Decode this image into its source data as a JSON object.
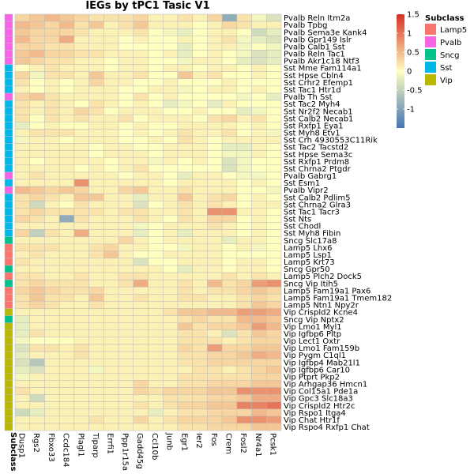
{
  "chart_data": {
    "type": "heatmap",
    "title": "IEGs by tPC1 Tasic V1",
    "annotation_label": "Subclass",
    "columns": [
      "Dusp1",
      "Rgs2",
      "Fbxo33",
      "Ccdc184",
      "Plagl1",
      "Tiparp",
      "Errfi1",
      "Ppp1r15a",
      "Gadd45g",
      "Ccl10b",
      "Junb",
      "Egr1",
      "Ier2",
      "Fos",
      "Crem",
      "Fosl2",
      "Nr4a1",
      "Pcsk1"
    ],
    "rows": [
      "Pvalb Reln Itm2a",
      "Pvalb Tpbg",
      "Pvalb Sema3e Kank4",
      "Pvalb Gpr149 Islr",
      "Pvalb Calb1 Sst",
      "Pvalb Reln Tac1",
      "Pvalb Akr1c18 Ntf3",
      "Sst Mme Fam114a1",
      "Sst Hpse Cbln4",
      "Sst Crhr2 Efemp1",
      "Sst Tac1 Htr1d",
      "Pvalb Th Sst",
      "Sst Tac2 Myh4",
      "Sst Nr2f2 Necab1",
      "Sst Calb2 Necab1",
      "Sst Rxfp1 Eya1",
      "Sst Myh8 Etv1",
      "Sst Crh 4930553C11Rik",
      "Sst Tac2 Tacstd2",
      "Sst Hpse Sema3c",
      "Sst Rxfp1 Prdm8",
      "Sst Chrna2 Ptgdr",
      "Pvalb Gabrg1",
      "Sst Esm1",
      "Pvalb Vipr2",
      "Sst Calb2 Pdlim5",
      "Sst Chrna2 Glra3",
      "Sst Tac1 Tacr3",
      "Sst Nts",
      "Sst Chodl",
      "Sst Myh8 Fibin",
      "Sncg Slc17a8",
      "Lamp5 Lhx6",
      "Lamp5 Lsp1",
      "Lamp5 Krt73",
      "Sncg Gpr50",
      "Lamp5 Plch2 Dock5",
      "Sncg Vip Itih5",
      "Lamp5 Fam19a1 Pax6",
      "Lamp5 Fam19a1 Tmem182",
      "Lamp5 Ntn1 Npy2r",
      "Vip Crispld2 Kcne4",
      "Sncg Vip Nptx2",
      "Vip Lmo1 Myl1",
      "Vip Igfbp6 Pltp",
      "Vip Lect1 Oxtr",
      "Vip Lmo1 Fam159b",
      "Vip Pygm C1ql1",
      "Vip Igfbp4 Mab21l1",
      "Vip Igfbp6 Car10",
      "Vip Ptprt Pkp2",
      "Vip Arhgap36 Hmcn1",
      "Vip Col15a1 Pde1a",
      "Vip Gpc3 Slc18a3",
      "Vip Crispld2 Htr2c",
      "Vip Rspo1 Itga4",
      "Vip Chat Htr1f",
      "Vip Rspo4 Rxfp1 Chat"
    ],
    "subclass": [
      "Pvalb",
      "Pvalb",
      "Pvalb",
      "Pvalb",
      "Pvalb",
      "Pvalb",
      "Pvalb",
      "Sst",
      "Sst",
      "Sst",
      "Sst",
      "Pvalb",
      "Sst",
      "Sst",
      "Sst",
      "Sst",
      "Sst",
      "Sst",
      "Sst",
      "Sst",
      "Sst",
      "Sst",
      "Pvalb",
      "Sst",
      "Pvalb",
      "Sst",
      "Sst",
      "Sst",
      "Sst",
      "Sst",
      "Sst",
      "Sncg",
      "Lamp5",
      "Lamp5",
      "Lamp5",
      "Sncg",
      "Lamp5",
      "Sncg",
      "Lamp5",
      "Lamp5",
      "Lamp5",
      "Vip",
      "Sncg",
      "Vip",
      "Vip",
      "Vip",
      "Vip",
      "Vip",
      "Vip",
      "Vip",
      "Vip",
      "Vip",
      "Vip",
      "Vip",
      "Vip",
      "Vip",
      "Vip",
      "Vip"
    ],
    "values": [
      [
        0.3,
        0.4,
        0.5,
        0.4,
        0.3,
        0.2,
        0.2,
        0.2,
        0.3,
        0.1,
        0.1,
        0.2,
        0.1,
        0.3,
        -0.9,
        0.2,
        -0.1,
        -0.3
      ],
      [
        0.5,
        0.4,
        0.3,
        0.5,
        0.2,
        0.4,
        0.1,
        0.2,
        0.4,
        0.1,
        0.1,
        0.1,
        0.0,
        0.1,
        0.3,
        0.2,
        0.1,
        0.1
      ],
      [
        0.4,
        0.3,
        0.3,
        0.3,
        0.2,
        0.1,
        0.1,
        0.1,
        0.2,
        0.0,
        -0.1,
        -0.2,
        0.0,
        0.1,
        0.1,
        0.0,
        -0.4,
        -0.2
      ],
      [
        0.5,
        0.3,
        0.3,
        0.6,
        0.1,
        0.1,
        0.1,
        0.0,
        0.1,
        0.0,
        0.0,
        0.1,
        0.0,
        0.1,
        0.2,
        -0.1,
        -0.2,
        -0.3
      ],
      [
        0.3,
        0.3,
        0.2,
        0.2,
        0.1,
        0.1,
        0.1,
        0.0,
        0.0,
        0.0,
        0.0,
        -0.2,
        0.0,
        0.1,
        0.1,
        -0.1,
        0.0,
        -0.1
      ],
      [
        0.4,
        0.5,
        0.3,
        0.3,
        0.2,
        0.2,
        0.1,
        0.1,
        0.1,
        0.0,
        0.1,
        -0.2,
        0.0,
        0.1,
        0.0,
        -0.1,
        -0.3,
        -0.2
      ],
      [
        0.4,
        0.3,
        0.2,
        0.2,
        0.1,
        0.1,
        0.0,
        0.1,
        0.1,
        0.0,
        0.0,
        -0.1,
        0.1,
        0.1,
        0.0,
        -0.2,
        -0.3,
        -0.2
      ],
      [
        0.0,
        0.1,
        0.2,
        0.1,
        0.1,
        0.1,
        0.0,
        0.1,
        0.1,
        0.0,
        0.1,
        0.1,
        0.0,
        0.1,
        0.1,
        0.0,
        0.1,
        0.0
      ],
      [
        0.3,
        -0.1,
        0.2,
        0.2,
        0.1,
        0.4,
        0.1,
        0.1,
        0.2,
        0.0,
        0.0,
        0.4,
        0.1,
        0.2,
        0.0,
        0.0,
        0.1,
        0.0
      ],
      [
        0.2,
        0.0,
        0.1,
        0.0,
        0.1,
        0.3,
        0.1,
        0.1,
        0.0,
        0.0,
        0.1,
        0.0,
        0.0,
        0.0,
        0.1,
        0.0,
        0.0,
        0.0
      ],
      [
        0.1,
        0.0,
        0.1,
        0.0,
        0.1,
        0.1,
        0.1,
        0.0,
        0.0,
        0.1,
        0.1,
        -0.1,
        0.0,
        0.1,
        0.1,
        0.0,
        0.1,
        0.0
      ],
      [
        0.3,
        0.4,
        0.2,
        0.1,
        0.1,
        0.1,
        0.1,
        0.0,
        0.2,
        0.0,
        0.1,
        0.0,
        0.0,
        0.0,
        0.0,
        -0.1,
        0.0,
        -0.2
      ],
      [
        0.2,
        0.1,
        0.2,
        0.1,
        0.0,
        0.2,
        0.1,
        0.0,
        0.1,
        0.0,
        -0.2,
        -0.1,
        0.0,
        -0.2,
        0.1,
        0.0,
        0.0,
        0.0
      ],
      [
        0.2,
        0.1,
        0.2,
        0.1,
        0.3,
        0.2,
        0.0,
        0.1,
        0.1,
        0.1,
        0.0,
        0.0,
        0.1,
        0.0,
        0.0,
        -0.2,
        -0.1,
        0.0
      ],
      [
        0.2,
        0.0,
        0.2,
        0.1,
        0.2,
        0.1,
        0.1,
        0.2,
        0.0,
        0.1,
        0.1,
        0.1,
        0.0,
        0.2,
        0.3,
        0.1,
        0.2,
        0.0
      ],
      [
        -0.2,
        0.0,
        0.1,
        0.0,
        0.0,
        0.1,
        0.1,
        0.0,
        0.1,
        0.0,
        0.0,
        0.1,
        0.1,
        0.1,
        0.1,
        0.0,
        0.1,
        0.0
      ],
      [
        0.1,
        0.2,
        0.2,
        0.2,
        0.1,
        0.1,
        0.1,
        0.0,
        0.1,
        0.0,
        0.1,
        0.2,
        0.1,
        0.1,
        0.2,
        0.0,
        0.1,
        -0.1
      ],
      [
        -0.1,
        0.1,
        0.1,
        0.0,
        0.1,
        0.1,
        0.1,
        0.0,
        0.0,
        0.1,
        0.0,
        0.2,
        0.1,
        0.0,
        0.1,
        0.1,
        0.1,
        0.1
      ],
      [
        0.1,
        0.1,
        0.1,
        0.1,
        0.1,
        0.0,
        0.1,
        0.1,
        0.0,
        0.0,
        0.1,
        0.1,
        0.1,
        0.0,
        -0.2,
        -0.2,
        0.1,
        0.0
      ],
      [
        0.1,
        0.1,
        0.1,
        0.1,
        0.1,
        0.0,
        0.1,
        0.1,
        0.1,
        0.0,
        0.1,
        0.1,
        0.1,
        0.0,
        -0.1,
        -0.1,
        0.1,
        0.0
      ],
      [
        0.1,
        0.0,
        0.1,
        0.1,
        0.1,
        0.1,
        0.0,
        0.1,
        0.1,
        -0.1,
        0.1,
        0.0,
        0.1,
        0.0,
        -0.3,
        -0.1,
        0.0,
        0.0
      ],
      [
        0.1,
        0.1,
        0.1,
        0.1,
        0.0,
        0.1,
        0.0,
        0.1,
        0.2,
        0.0,
        0.0,
        0.0,
        0.0,
        0.0,
        -0.3,
        -0.1,
        0.0,
        0.0
      ],
      [
        0.1,
        0.2,
        0.1,
        0.1,
        0.1,
        0.1,
        0.1,
        0.0,
        0.1,
        0.1,
        0.0,
        -0.2,
        0.1,
        0.1,
        0.0,
        -0.1,
        -0.1,
        0.0
      ],
      [
        0.1,
        0.1,
        0.1,
        0.1,
        0.8,
        0.1,
        0.1,
        0.1,
        0.1,
        0.1,
        0.0,
        0.1,
        0.1,
        0.1,
        0.1,
        0.0,
        0.1,
        0.0
      ],
      [
        0.5,
        0.4,
        0.3,
        0.4,
        0.3,
        0.1,
        0.1,
        0.3,
        0.4,
        0.1,
        0.1,
        0.2,
        0.1,
        0.1,
        0.1,
        0.0,
        0.0,
        -0.1
      ],
      [
        0.2,
        0.3,
        0.2,
        0.1,
        0.4,
        0.4,
        0.1,
        0.1,
        -0.2,
        0.1,
        0.1,
        0.4,
        0.1,
        0.2,
        0.3,
        0.0,
        0.1,
        0.0
      ],
      [
        0.2,
        -0.4,
        0.1,
        0.0,
        0.2,
        0.1,
        0.1,
        0.1,
        -0.3,
        0.0,
        0.1,
        0.2,
        0.1,
        0.2,
        0.1,
        0.0,
        0.1,
        0.1
      ],
      [
        0.2,
        0.3,
        0.2,
        0.2,
        0.2,
        0.2,
        0.1,
        0.2,
        0.2,
        0.1,
        0.1,
        0.2,
        0.1,
        0.8,
        0.8,
        0.1,
        0.1,
        0.0
      ],
      [
        0.3,
        0.2,
        0.1,
        -0.9,
        0.2,
        0.1,
        0.1,
        0.1,
        0.2,
        0.1,
        0.0,
        0.2,
        0.1,
        0.3,
        0.3,
        0.0,
        0.1,
        0.0
      ],
      [
        0.1,
        0.1,
        0.1,
        0.1,
        0.1,
        0.1,
        0.1,
        0.1,
        -0.1,
        0.0,
        0.1,
        0.1,
        0.1,
        0.2,
        0.1,
        0.0,
        0.1,
        0.0
      ],
      [
        0.3,
        -0.5,
        0.2,
        0.1,
        0.6,
        0.1,
        0.1,
        0.1,
        -0.2,
        0.0,
        0.1,
        -0.2,
        0.1,
        0.1,
        0.1,
        0.0,
        0.1,
        0.0
      ],
      [
        0.1,
        0.1,
        0.1,
        0.1,
        0.1,
        0.1,
        0.1,
        0.3,
        0.1,
        0.0,
        0.1,
        0.1,
        0.1,
        0.1,
        -0.2,
        0.1,
        0.1,
        0.0
      ],
      [
        0.2,
        0.2,
        0.2,
        0.1,
        0.1,
        0.2,
        0.3,
        0.1,
        0.1,
        0.0,
        0.0,
        -0.1,
        0.1,
        0.1,
        0.0,
        0.1,
        -0.1,
        0.0
      ],
      [
        0.1,
        0.2,
        0.1,
        0.1,
        0.1,
        0.2,
        0.4,
        0.1,
        0.0,
        0.0,
        0.1,
        0.1,
        0.1,
        0.1,
        0.0,
        0.0,
        0.0,
        0.0
      ],
      [
        0.2,
        0.1,
        0.1,
        0.1,
        0.1,
        0.1,
        0.1,
        0.1,
        -0.3,
        0.0,
        0.0,
        0.1,
        0.1,
        0.1,
        0.0,
        0.1,
        0.1,
        0.0
      ],
      [
        0.1,
        0.1,
        0.1,
        0.1,
        0.1,
        0.1,
        0.1,
        0.1,
        0.1,
        0.1,
        0.0,
        -0.2,
        0.1,
        0.1,
        0.0,
        0.1,
        0.1,
        0.0
      ],
      [
        0.2,
        0.2,
        0.1,
        0.1,
        0.2,
        0.1,
        0.1,
        0.2,
        0.2,
        0.1,
        0.1,
        0.1,
        0.1,
        0.1,
        0.2,
        0.1,
        0.2,
        0.1
      ],
      [
        0.2,
        0.3,
        0.2,
        0.2,
        0.2,
        0.1,
        0.1,
        0.2,
        0.6,
        0.1,
        0.1,
        0.2,
        0.1,
        0.5,
        0.2,
        0.3,
        0.7,
        0.8
      ],
      [
        0.3,
        0.4,
        0.3,
        0.2,
        0.2,
        0.3,
        0.1,
        0.1,
        0.1,
        0.1,
        0.1,
        0.2,
        0.1,
        0.2,
        0.2,
        0.3,
        0.4,
        0.3
      ],
      [
        0.2,
        0.4,
        0.2,
        0.2,
        0.1,
        0.4,
        0.1,
        0.1,
        0.2,
        0.1,
        0.1,
        0.2,
        0.2,
        0.1,
        0.1,
        0.2,
        0.3,
        0.2
      ],
      [
        0.2,
        0.3,
        0.2,
        0.1,
        0.1,
        0.2,
        0.1,
        0.1,
        0.1,
        0.1,
        0.1,
        0.1,
        0.1,
        0.1,
        0.1,
        0.2,
        0.4,
        0.3
      ],
      [
        0.1,
        0.1,
        0.1,
        0.1,
        0.1,
        0.1,
        0.1,
        0.1,
        0.1,
        0.1,
        0.2,
        0.4,
        0.4,
        0.5,
        0.5,
        0.7,
        0.7,
        0.6
      ],
      [
        -0.2,
        0.1,
        0.1,
        0.1,
        0.1,
        0.1,
        0.1,
        0.1,
        0.1,
        0.1,
        0.1,
        0.2,
        0.3,
        0.2,
        0.2,
        0.5,
        0.5,
        0.4
      ],
      [
        -0.2,
        0.1,
        0.1,
        0.1,
        0.1,
        0.1,
        0.1,
        0.1,
        0.1,
        0.1,
        0.1,
        0.4,
        0.2,
        0.3,
        0.3,
        0.4,
        0.7,
        0.5
      ],
      [
        -0.2,
        0.2,
        0.1,
        0.1,
        0.1,
        0.1,
        0.1,
        0.1,
        0.1,
        0.1,
        0.1,
        0.2,
        0.2,
        0.1,
        -0.3,
        0.2,
        0.4,
        0.3
      ],
      [
        -0.1,
        0.0,
        0.0,
        0.0,
        0.1,
        0.1,
        0.1,
        0.1,
        0.1,
        0.1,
        0.1,
        0.2,
        0.2,
        0.2,
        0.1,
        0.2,
        0.3,
        0.3
      ],
      [
        -0.3,
        0.2,
        0.2,
        0.1,
        0.2,
        0.1,
        0.1,
        0.1,
        0.1,
        0.1,
        0.1,
        0.3,
        0.2,
        0.7,
        0.3,
        0.3,
        0.4,
        0.4
      ],
      [
        -0.2,
        0.1,
        0.1,
        0.1,
        0.2,
        0.1,
        0.1,
        0.1,
        0.1,
        0.1,
        0.1,
        0.2,
        0.2,
        0.3,
        0.3,
        0.4,
        0.6,
        0.5
      ],
      [
        -0.3,
        -0.6,
        0.1,
        0.1,
        0.1,
        0.1,
        0.1,
        0.1,
        0.1,
        0.1,
        0.1,
        0.2,
        0.2,
        0.3,
        0.3,
        0.3,
        0.3,
        0.3
      ],
      [
        -0.2,
        -0.3,
        0.1,
        0.1,
        0.1,
        -0.1,
        0.1,
        0.1,
        0.1,
        0.1,
        0.1,
        0.1,
        0.2,
        0.2,
        0.1,
        0.2,
        0.3,
        0.4
      ],
      [
        -0.1,
        0.1,
        0.1,
        0.1,
        0.1,
        0.1,
        0.1,
        0.1,
        0.1,
        0.1,
        0.1,
        0.2,
        0.2,
        0.2,
        0.2,
        0.2,
        0.3,
        0.3
      ],
      [
        0.1,
        0.1,
        0.1,
        0.1,
        0.1,
        0.1,
        0.1,
        0.1,
        0.3,
        0.1,
        0.1,
        0.2,
        0.2,
        0.3,
        0.3,
        0.3,
        0.4,
        0.4
      ],
      [
        0.2,
        0.1,
        0.1,
        0.1,
        0.1,
        0.1,
        0.1,
        0.1,
        0.3,
        0.2,
        0.3,
        0.3,
        0.3,
        0.4,
        0.4,
        0.8,
        0.8,
        0.8
      ],
      [
        0.1,
        -0.4,
        0.1,
        0.1,
        0.1,
        0.1,
        0.1,
        0.1,
        0.1,
        0.1,
        0.2,
        0.2,
        0.2,
        0.3,
        0.3,
        0.4,
        0.6,
        0.6
      ],
      [
        0.1,
        0.1,
        0.1,
        0.1,
        0.1,
        0.1,
        0.1,
        0.1,
        0.2,
        0.1,
        0.2,
        0.3,
        0.3,
        0.4,
        0.4,
        0.9,
        0.9,
        1.0
      ],
      [
        -0.4,
        -0.2,
        0.1,
        0.1,
        0.1,
        0.1,
        0.1,
        0.1,
        0.1,
        -0.2,
        0.1,
        0.2,
        0.2,
        0.3,
        0.3,
        0.3,
        0.5,
        0.4
      ],
      [
        0.1,
        0.1,
        0.1,
        0.1,
        0.1,
        0.2,
        0.1,
        0.1,
        0.3,
        0.1,
        0.2,
        0.3,
        0.3,
        0.3,
        0.4,
        0.8,
        0.8,
        0.7
      ],
      [
        0.1,
        0.1,
        0.1,
        0.1,
        0.1,
        0.1,
        0.1,
        0.1,
        0.1,
        0.1,
        0.1,
        0.2,
        0.2,
        0.3,
        0.3,
        0.3,
        0.4,
        0.4
      ]
    ],
    "color_scale": {
      "range": [
        -1.5,
        1.5
      ],
      "ticks": [
        -1,
        -0.5,
        0,
        0.5,
        1,
        1.5
      ],
      "tick_labels": [
        "-1",
        "-0.5",
        "0",
        "0.5",
        "1",
        "1.5"
      ],
      "low_color": "#4575b4",
      "mid_color": "#ffffbf",
      "high_color": "#d73027"
    },
    "legend": {
      "title": "Subclass",
      "items": [
        {
          "name": "Lamp5",
          "color": "#f8766d"
        },
        {
          "name": "Pvalb",
          "color": "#f564e3"
        },
        {
          "name": "Sncg",
          "color": "#00c08b"
        },
        {
          "name": "Sst",
          "color": "#00b8e7"
        },
        {
          "name": "Vip",
          "color": "#b8b800"
        }
      ],
      "position": "top-right"
    },
    "grid": true
  }
}
